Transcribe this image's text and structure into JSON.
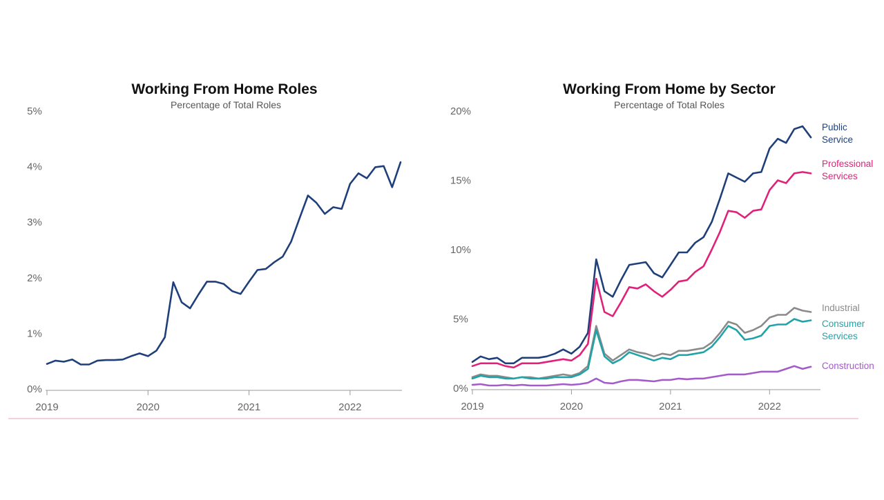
{
  "chart_data": [
    {
      "type": "line",
      "title": "Working From Home Roles",
      "subtitle": "Percentage of Total Roles",
      "x_tick_labels": [
        "2019",
        "2020",
        "2021",
        "2022"
      ],
      "y_tick_labels": [
        "0%",
        "1%",
        "2%",
        "3%",
        "4%",
        "5%"
      ],
      "ylim": [
        0,
        5
      ],
      "xlim": [
        2019.0,
        2022.5
      ],
      "grid": false,
      "series": [
        {
          "color": "#1f3f7a",
          "x": [
            2019.0,
            2019.0833,
            2019.1667,
            2019.25,
            2019.3333,
            2019.4167,
            2019.5,
            2019.5833,
            2019.6667,
            2019.75,
            2019.8333,
            2019.9167,
            2020.0,
            2020.0833,
            2020.1667,
            2020.25,
            2020.3333,
            2020.4167,
            2020.5,
            2020.5833,
            2020.6667,
            2020.75,
            2020.8333,
            2020.9167,
            2021.0,
            2021.0833,
            2021.1667,
            2021.25,
            2021.3333,
            2021.4167,
            2021.5,
            2021.5833,
            2021.6667,
            2021.75,
            2021.8333,
            2021.9167,
            2022.0,
            2022.0833,
            2022.1667,
            2022.25,
            2022.3333,
            2022.4167,
            2022.5
          ],
          "values": [
            0.45,
            0.51,
            0.49,
            0.53,
            0.44,
            0.44,
            0.51,
            0.52,
            0.52,
            0.53,
            0.59,
            0.64,
            0.59,
            0.69,
            0.93,
            1.92,
            1.56,
            1.45,
            1.7,
            1.93,
            1.93,
            1.89,
            1.76,
            1.71,
            1.93,
            2.14,
            2.16,
            2.28,
            2.38,
            2.65,
            3.07,
            3.48,
            3.35,
            3.15,
            3.27,
            3.24,
            3.69,
            3.88,
            3.79,
            3.99,
            4.01,
            3.63,
            4.08
          ]
        }
      ]
    },
    {
      "type": "line",
      "title": "Working From Home by Sector",
      "subtitle": "Percentage of Total Roles",
      "x_tick_labels": [
        "2019",
        "2020",
        "2021",
        "2022"
      ],
      "y_tick_labels": [
        "0%",
        "5%",
        "10%",
        "15%",
        "20%"
      ],
      "ylim": [
        0,
        20
      ],
      "xlim": [
        2019.0,
        2022.5
      ],
      "grid": false,
      "x": [
        2019.0,
        2019.0833,
        2019.1667,
        2019.25,
        2019.3333,
        2019.4167,
        2019.5,
        2019.5833,
        2019.6667,
        2019.75,
        2019.8333,
        2019.9167,
        2020.0,
        2020.0833,
        2020.1667,
        2020.25,
        2020.3333,
        2020.4167,
        2020.5,
        2020.5833,
        2020.6667,
        2020.75,
        2020.8333,
        2020.9167,
        2021.0,
        2021.0833,
        2021.1667,
        2021.25,
        2021.3333,
        2021.4167,
        2021.5,
        2021.5833,
        2021.6667,
        2021.75,
        2021.8333,
        2021.9167,
        2022.0,
        2022.0833,
        2022.1667,
        2022.25,
        2022.3333,
        2022.4167
      ],
      "series": [
        {
          "name": "Public Service",
          "label_lines": [
            "Public",
            "Service"
          ],
          "color": "#1f3f7a",
          "values": [
            1.9,
            2.3,
            2.1,
            2.2,
            1.8,
            1.8,
            2.2,
            2.2,
            2.2,
            2.3,
            2.5,
            2.8,
            2.5,
            3.0,
            4.0,
            9.3,
            7.0,
            6.6,
            7.8,
            8.9,
            9.0,
            9.1,
            8.3,
            8.0,
            8.9,
            9.8,
            9.8,
            10.5,
            10.9,
            12.0,
            13.7,
            15.5,
            15.2,
            14.9,
            15.5,
            15.6,
            17.3,
            18.0,
            17.7,
            18.7,
            18.9,
            18.1
          ]
        },
        {
          "name": "Professional Services",
          "label_lines": [
            "Professional",
            "Services"
          ],
          "color": "#e0217a",
          "values": [
            1.6,
            1.8,
            1.8,
            1.8,
            1.6,
            1.5,
            1.8,
            1.8,
            1.8,
            1.9,
            2.0,
            2.1,
            2.0,
            2.4,
            3.2,
            7.9,
            5.5,
            5.2,
            6.2,
            7.3,
            7.2,
            7.5,
            7.0,
            6.6,
            7.1,
            7.7,
            7.8,
            8.4,
            8.8,
            10.0,
            11.3,
            12.8,
            12.7,
            12.3,
            12.8,
            12.9,
            14.3,
            15.0,
            14.8,
            15.5,
            15.6,
            15.5
          ]
        },
        {
          "name": "Industrial",
          "label_lines": [
            "Industrial"
          ],
          "color": "#8a8a8a",
          "values": [
            0.8,
            1.0,
            0.9,
            0.9,
            0.8,
            0.7,
            0.8,
            0.8,
            0.7,
            0.8,
            0.9,
            1.0,
            0.9,
            1.1,
            1.6,
            4.5,
            2.5,
            2.0,
            2.4,
            2.8,
            2.6,
            2.5,
            2.3,
            2.5,
            2.4,
            2.7,
            2.7,
            2.8,
            2.9,
            3.3,
            4.0,
            4.8,
            4.6,
            4.0,
            4.2,
            4.5,
            5.1,
            5.3,
            5.3,
            5.8,
            5.6,
            5.5
          ]
        },
        {
          "name": "Consumer Services",
          "label_lines": [
            "Consumer",
            "Services"
          ],
          "color": "#20a3a8",
          "values": [
            0.7,
            0.9,
            0.8,
            0.8,
            0.7,
            0.7,
            0.8,
            0.7,
            0.7,
            0.7,
            0.8,
            0.8,
            0.8,
            1.0,
            1.4,
            4.2,
            2.3,
            1.8,
            2.1,
            2.6,
            2.4,
            2.2,
            2.0,
            2.2,
            2.1,
            2.4,
            2.4,
            2.5,
            2.6,
            3.0,
            3.7,
            4.5,
            4.2,
            3.5,
            3.6,
            3.8,
            4.5,
            4.6,
            4.6,
            5.0,
            4.8,
            4.9
          ]
        },
        {
          "name": "Construction",
          "label_lines": [
            "Construction"
          ],
          "color": "#a35bc9",
          "values": [
            0.25,
            0.3,
            0.2,
            0.2,
            0.25,
            0.2,
            0.25,
            0.2,
            0.2,
            0.2,
            0.25,
            0.3,
            0.25,
            0.3,
            0.4,
            0.7,
            0.4,
            0.35,
            0.5,
            0.6,
            0.6,
            0.55,
            0.5,
            0.6,
            0.6,
            0.7,
            0.65,
            0.7,
            0.7,
            0.8,
            0.9,
            1.0,
            1.0,
            1.0,
            1.1,
            1.2,
            1.2,
            1.2,
            1.4,
            1.6,
            1.4,
            1.55
          ]
        }
      ]
    }
  ],
  "divider_color": "#e8a6b8"
}
